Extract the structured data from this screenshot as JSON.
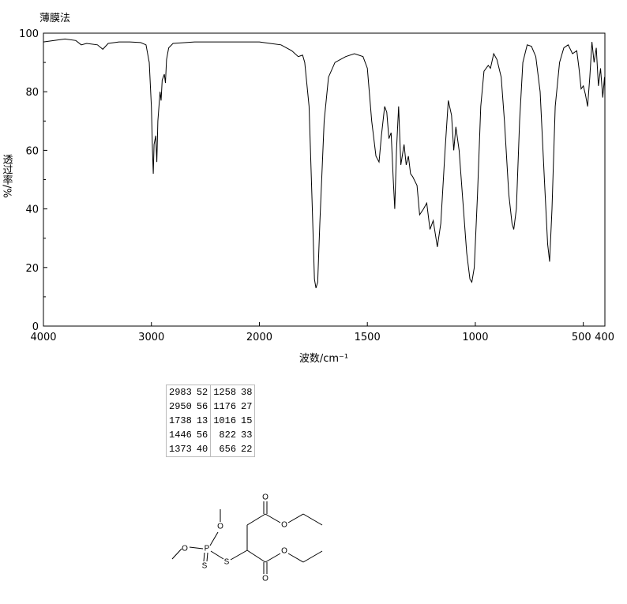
{
  "chart_data": {
    "type": "line",
    "title": "薄膜法",
    "xlabel": "波数/cm⁻¹",
    "ylabel": "透过率/%",
    "xlim": [
      4000,
      400
    ],
    "xticks": [
      4000,
      3000,
      2000,
      1500,
      1000,
      500,
      400
    ],
    "xscale": {
      "type": "piecewise",
      "break": 2000,
      "ratio": 2
    },
    "ylim": [
      0,
      100
    ],
    "yticks": [
      0,
      20,
      40,
      60,
      80,
      100
    ],
    "yminorticks": [
      10,
      30,
      50,
      70,
      90
    ],
    "color": "#000000",
    "grid": false,
    "x": [
      4000,
      3900,
      3800,
      3700,
      3650,
      3600,
      3500,
      3450,
      3400,
      3300,
      3200,
      3100,
      3050,
      3020,
      3000,
      2990,
      2983,
      2975,
      2960,
      2950,
      2940,
      2920,
      2910,
      2900,
      2880,
      2870,
      2860,
      2840,
      2800,
      2600,
      2400,
      2200,
      2000,
      1950,
      1900,
      1850,
      1820,
      1800,
      1790,
      1770,
      1755,
      1745,
      1738,
      1730,
      1720,
      1700,
      1680,
      1650,
      1600,
      1560,
      1520,
      1500,
      1480,
      1460,
      1446,
      1435,
      1420,
      1410,
      1400,
      1390,
      1380,
      1373,
      1365,
      1355,
      1345,
      1330,
      1320,
      1310,
      1300,
      1290,
      1270,
      1258,
      1240,
      1225,
      1210,
      1195,
      1180,
      1176,
      1160,
      1140,
      1125,
      1110,
      1100,
      1090,
      1075,
      1060,
      1040,
      1025,
      1016,
      1005,
      990,
      975,
      960,
      940,
      930,
      915,
      900,
      880,
      865,
      845,
      830,
      822,
      810,
      795,
      780,
      760,
      740,
      720,
      700,
      680,
      665,
      656,
      645,
      630,
      610,
      590,
      570,
      550,
      530,
      520,
      510,
      500,
      490,
      480,
      470,
      460,
      450,
      440,
      430,
      420,
      410,
      402,
      400
    ],
    "values": [
      97,
      97.5,
      98,
      97.5,
      96,
      96.5,
      96,
      94.5,
      96.5,
      97,
      97,
      96.8,
      96,
      90,
      75,
      60,
      52,
      62,
      65,
      56,
      70,
      80,
      77,
      84,
      86,
      83,
      91,
      95,
      96.5,
      97,
      97,
      97,
      97,
      96.5,
      96,
      94,
      92,
      92.5,
      90,
      75,
      40,
      16,
      13,
      15,
      35,
      70,
      85,
      90,
      92,
      93,
      92,
      88,
      70,
      58,
      56,
      65,
      75,
      73,
      64,
      66,
      50,
      40,
      60,
      75,
      55,
      62,
      55,
      58,
      52,
      51,
      48,
      38,
      40,
      42,
      33,
      36,
      29,
      27,
      35,
      60,
      77,
      72,
      60,
      68,
      60,
      45,
      25,
      16,
      15,
      20,
      45,
      75,
      87,
      89,
      88,
      93,
      91,
      85,
      70,
      45,
      35,
      33,
      40,
      70,
      90,
      96,
      95.5,
      92,
      80,
      50,
      28,
      22,
      40,
      75,
      90,
      95,
      96,
      93,
      94,
      88,
      81,
      82,
      79,
      75,
      85,
      97,
      90,
      95,
      82,
      88,
      78,
      85,
      80
    ]
  },
  "peak_table": {
    "rows": [
      [
        2983,
        52,
        1258,
        38
      ],
      [
        2950,
        56,
        1176,
        27
      ],
      [
        1738,
        13,
        1016,
        15
      ],
      [
        1446,
        56,
        822,
        33
      ],
      [
        1373,
        40,
        656,
        22
      ]
    ]
  },
  "structure": {
    "atoms": [
      "O",
      "O",
      "P",
      "S",
      "S",
      "O",
      "O",
      "O",
      "O"
    ]
  }
}
